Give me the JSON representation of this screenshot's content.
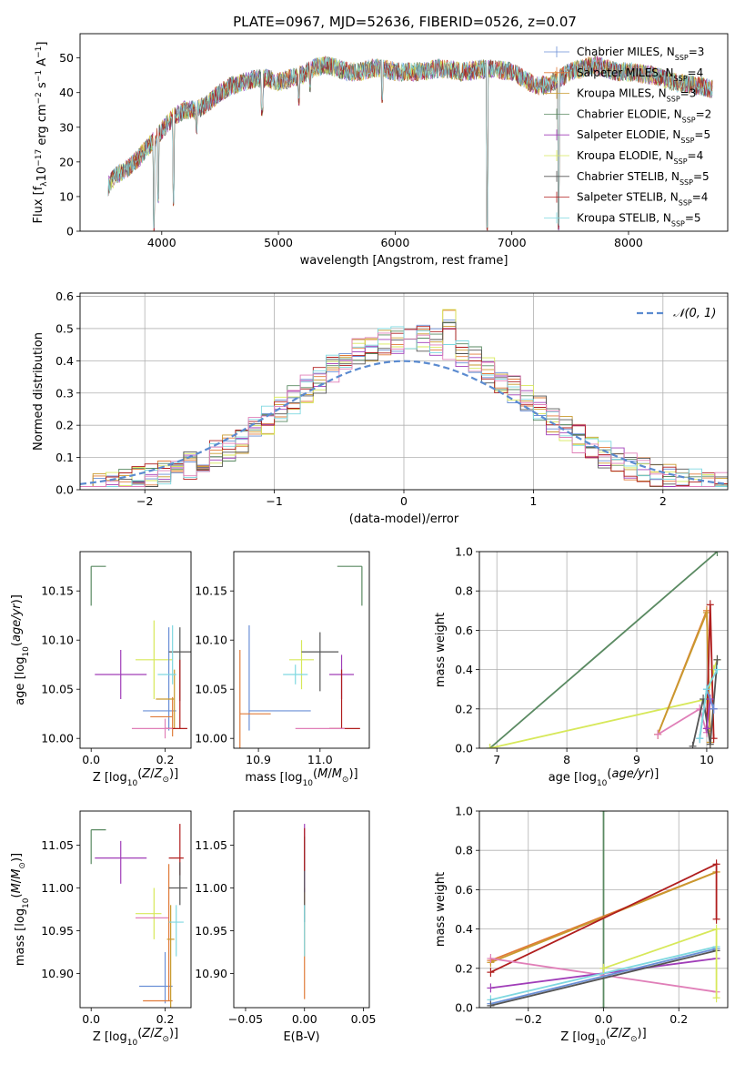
{
  "figure_title": "PLATE=0967, MJD=52636, FIBERID=0526, z=0.07",
  "colors": {
    "Chabrier MILES": "#6a8fd6",
    "Salpeter MILES": "#e07b39",
    "Kroupa MILES": "#c99a2e",
    "Chabrier ELODIE": "#5a8a62",
    "Salpeter ELODIE": "#a03db8",
    "Kroupa ELODIE": "#d7e85a",
    "Chabrier STELIB": "#555555",
    "Salpeter STELIB": "#b01e1e",
    "Kroupa STELIB": "#7fd8e0",
    "pink": "#e07fb8",
    "normal_curve": "#5b8bd0",
    "grid": "#b0b0b0"
  },
  "chart_data": [
    {
      "id": "spectrum",
      "type": "line",
      "xlabel": "wavelength [Angstrom, rest frame]",
      "ylabel": "Flux [f_λ10^−17 erg cm^−2 s^−1 A^−1]",
      "xlim": [
        3300,
        8850
      ],
      "ylim": [
        0,
        57
      ],
      "xticks": [
        4000,
        5000,
        6000,
        7000,
        8000
      ],
      "yticks": [
        0,
        10,
        20,
        30,
        40,
        50
      ],
      "grid": false,
      "legend_position": "top-right",
      "legend": [
        {
          "model": "Chabrier MILES",
          "n": "3"
        },
        {
          "model": "Salpeter MILES",
          "n": "4"
        },
        {
          "model": "Kroupa MILES",
          "n": "3"
        },
        {
          "model": "Chabrier ELODIE",
          "n": "2"
        },
        {
          "model": "Salpeter ELODIE",
          "n": "5"
        },
        {
          "model": "Kroupa ELODIE",
          "n": "4"
        },
        {
          "model": "Chabrier STELIB",
          "n": "5"
        },
        {
          "model": "Salpeter STELIB",
          "n": "4"
        },
        {
          "model": "Kroupa STELIB",
          "n": "5"
        }
      ],
      "continuum": [
        [
          3540,
          13
        ],
        [
          3600,
          16
        ],
        [
          3700,
          18
        ],
        [
          3800,
          21
        ],
        [
          3900,
          25
        ],
        [
          4000,
          29
        ],
        [
          4100,
          33
        ],
        [
          4200,
          35
        ],
        [
          4300,
          35
        ],
        [
          4400,
          37
        ],
        [
          4500,
          40
        ],
        [
          4600,
          42
        ],
        [
          4700,
          43
        ],
        [
          4800,
          44
        ],
        [
          4900,
          44
        ],
        [
          5000,
          43
        ],
        [
          5100,
          44
        ],
        [
          5200,
          45
        ],
        [
          5300,
          47
        ],
        [
          5400,
          48
        ],
        [
          5500,
          47
        ],
        [
          5600,
          46
        ],
        [
          5700,
          46
        ],
        [
          5800,
          47
        ],
        [
          5900,
          47
        ],
        [
          6000,
          46
        ],
        [
          6200,
          46
        ],
        [
          6400,
          47
        ],
        [
          6600,
          46
        ],
        [
          6800,
          47
        ],
        [
          7000,
          46
        ],
        [
          7100,
          44
        ],
        [
          7200,
          42
        ],
        [
          7300,
          42
        ],
        [
          7400,
          44
        ],
        [
          7500,
          46
        ],
        [
          7600,
          47
        ],
        [
          7700,
          48
        ],
        [
          7800,
          47
        ],
        [
          7900,
          46
        ],
        [
          8000,
          46
        ],
        [
          8200,
          45
        ],
        [
          8400,
          43
        ],
        [
          8600,
          42
        ],
        [
          8720,
          41
        ]
      ],
      "dips": [
        [
          3934,
          0
        ],
        [
          3969,
          8
        ],
        [
          4102,
          6
        ],
        [
          4300,
          28
        ],
        [
          4861,
          33
        ],
        [
          5175,
          36
        ],
        [
          5270,
          40
        ],
        [
          5890,
          37
        ],
        [
          6563,
          43
        ],
        [
          6790,
          0
        ],
        [
          7400,
          0
        ]
      ],
      "noise_amplitude": 4
    },
    {
      "id": "residuals",
      "type": "histogram",
      "xlabel": "(data-model)/error",
      "ylabel": "Normed distribution",
      "xlim": [
        -2.5,
        2.5
      ],
      "ylim": [
        0,
        0.61
      ],
      "xticks": [
        -2,
        -1,
        0,
        1,
        2
      ],
      "yticks": [
        0.0,
        0.1,
        0.2,
        0.3,
        0.4,
        0.5,
        0.6
      ],
      "grid": true,
      "bin_width": 0.1,
      "legend_position": "top-right",
      "normal_curve": {
        "mean": 0,
        "sigma": 1,
        "style": "dashed"
      },
      "profile": {
        "mean": 0.05,
        "sigma": 0.88,
        "peak": 0.47
      },
      "series_peaks": [
        0.55,
        0.57,
        0.51,
        0.55,
        0.52,
        0.57,
        0.52,
        0.53,
        0.47
      ]
    },
    {
      "id": "age_vs_Z",
      "type": "errorbar",
      "xlabel": "Z [log10(Z/Z☉)]",
      "ylabel": "age  [log10(age/yr)]",
      "xlim": [
        -0.03,
        0.27
      ],
      "ylim": [
        9.99,
        10.19
      ],
      "xticks": [
        0.0,
        0.2
      ],
      "yticks": [
        10.0,
        10.05,
        10.1,
        10.15
      ],
      "points": [
        {
          "c": "Chabrier ELODIE",
          "x": 0.0,
          "y": 10.175,
          "xerr": [
            0,
            0.04
          ],
          "yerr": [
            0.04,
            0
          ]
        },
        {
          "c": "Salpeter ELODIE",
          "x": 0.08,
          "y": 10.065,
          "xerr": [
            0.07,
            0.07
          ],
          "yerr": [
            0.025,
            0.025
          ]
        },
        {
          "c": "Kroupa ELODIE",
          "x": 0.17,
          "y": 10.08,
          "xerr": [
            0.05,
            0.05
          ],
          "yerr": [
            0.04,
            0.04
          ]
        },
        {
          "c": "Chabrier MILES",
          "x": 0.21,
          "y": 10.028,
          "xerr": [
            0.07,
            0.02
          ],
          "yerr": [
            0.02,
            0.085
          ]
        },
        {
          "c": "Salpeter MILES",
          "x": 0.22,
          "y": 10.022,
          "xerr": [
            0.06,
            0
          ],
          "yerr": [
            0.02,
            0.02
          ]
        },
        {
          "c": "Kroupa MILES",
          "x": 0.225,
          "y": 10.04,
          "xerr": [
            0.05,
            0
          ],
          "yerr": [
            0.03,
            0.03
          ]
        },
        {
          "c": "Chabrier STELIB",
          "x": 0.24,
          "y": 10.088,
          "xerr": [
            0.03,
            0.03
          ],
          "yerr": [
            0.05,
            0.025
          ]
        },
        {
          "c": "Salpeter STELIB",
          "x": 0.24,
          "y": 10.01,
          "xerr": [
            0.04,
            0.02
          ],
          "yerr": [
            0,
            0.07
          ]
        },
        {
          "c": "Kroupa STELIB",
          "x": 0.22,
          "y": 10.065,
          "xerr": [
            0.04,
            0.01
          ],
          "yerr": [
            0.01,
            0.05
          ]
        },
        {
          "c": "pink",
          "x": 0.2,
          "y": 10.01,
          "xerr": [
            0.09,
            0.02
          ],
          "yerr": [
            0.01,
            0.01
          ]
        }
      ]
    },
    {
      "id": "age_vs_mass",
      "type": "errorbar",
      "xlabel": "mass [log10(M/M☉)]",
      "ylabel": "",
      "xlim": [
        10.86,
        11.08
      ],
      "ylim": [
        9.99,
        10.19
      ],
      "xticks": [
        10.9,
        11.0
      ],
      "yticks": [
        10.0,
        10.05,
        10.1,
        10.15
      ],
      "points": [
        {
          "c": "Chabrier ELODIE",
          "x": 11.068,
          "y": 10.175,
          "xerr": [
            0.04,
            0
          ],
          "yerr": [
            0.04,
            0
          ]
        },
        {
          "c": "Chabrier MILES",
          "x": 10.885,
          "y": 10.028,
          "xerr": [
            0,
            0.1
          ],
          "yerr": [
            0.02,
            0.087
          ]
        },
        {
          "c": "Salpeter MILES",
          "x": 10.87,
          "y": 10.025,
          "xerr": [
            0,
            0.05
          ],
          "yerr": [
            0.035,
            0.065
          ]
        },
        {
          "c": "Kroupa ELODIE",
          "x": 10.97,
          "y": 10.08,
          "xerr": [
            0.02,
            0.02
          ],
          "yerr": [
            0.03,
            0.02
          ]
        },
        {
          "c": "Kroupa STELIB",
          "x": 10.96,
          "y": 10.065,
          "xerr": [
            0.02,
            0.02
          ],
          "yerr": [
            0.01,
            0.01
          ]
        },
        {
          "c": "Chabrier STELIB",
          "x": 11.0,
          "y": 10.088,
          "xerr": [
            0.03,
            0.03
          ],
          "yerr": [
            0.04,
            0.02
          ]
        },
        {
          "c": "Salpeter ELODIE",
          "x": 11.035,
          "y": 10.065,
          "xerr": [
            0.02,
            0.02
          ],
          "yerr": [
            0.025,
            0.02
          ]
        },
        {
          "c": "Salpeter STELIB",
          "x": 11.035,
          "y": 10.01,
          "xerr": [
            0.02,
            0.03
          ],
          "yerr": [
            0,
            0.06
          ]
        },
        {
          "c": "pink",
          "x": 11.0,
          "y": 10.01,
          "xerr": [
            0.04,
            0.04
          ],
          "yerr": [
            0,
            0
          ]
        }
      ]
    },
    {
      "id": "weight_vs_age",
      "type": "line",
      "xlabel": "age  [log10(age/yr)]",
      "ylabel": "mass weight",
      "xlim": [
        6.75,
        10.3
      ],
      "ylim": [
        0,
        1.0
      ],
      "xticks": [
        7,
        8,
        9,
        10
      ],
      "yticks": [
        0.0,
        0.2,
        0.4,
        0.6,
        0.8,
        1.0
      ],
      "grid": true,
      "series": [
        {
          "c": "Chabrier ELODIE",
          "x": [
            6.9,
            10.15
          ],
          "y": [
            0,
            1.0
          ]
        },
        {
          "c": "Kroupa ELODIE",
          "x": [
            6.9,
            10.0,
            10.1,
            10.15
          ],
          "y": [
            0,
            0.25,
            0.4,
            0.45
          ]
        },
        {
          "c": "Salpeter MILES",
          "x": [
            9.3,
            10.0,
            10.05
          ],
          "y": [
            0.07,
            0.7,
            0.03
          ]
        },
        {
          "c": "Kroupa MILES",
          "x": [
            9.3,
            10.0,
            10.05
          ],
          "y": [
            0.07,
            0.69,
            0.03
          ]
        },
        {
          "c": "Salpeter STELIB",
          "x": [
            10.0,
            10.05,
            10.1
          ],
          "y": [
            0.1,
            0.73,
            0.05
          ]
        },
        {
          "c": "pink",
          "x": [
            9.3,
            9.9,
            10.0
          ],
          "y": [
            0.07,
            0.2,
            0.08
          ]
        },
        {
          "c": "Chabrier STELIB",
          "x": [
            9.8,
            9.95,
            10.05,
            10.15
          ],
          "y": [
            0.01,
            0.25,
            0.02,
            0.45
          ]
        },
        {
          "c": "Salpeter ELODIE",
          "x": [
            10.0,
            10.05,
            10.1
          ],
          "y": [
            0.1,
            0.25,
            0.2
          ]
        },
        {
          "c": "Chabrier MILES",
          "x": [
            9.9,
            10.0,
            10.1
          ],
          "y": [
            0.05,
            0.3,
            0.2
          ]
        },
        {
          "c": "Kroupa STELIB",
          "x": [
            9.9,
            10.0,
            10.15
          ],
          "y": [
            0.05,
            0.3,
            0.4
          ]
        }
      ]
    },
    {
      "id": "mass_vs_Z",
      "type": "errorbar",
      "xlabel": "Z [log10(Z/Z☉)]",
      "ylabel": "mass [log10(M/M☉)]",
      "xlim": [
        -0.03,
        0.27
      ],
      "ylim": [
        10.86,
        11.09
      ],
      "xticks": [
        0.0,
        0.2
      ],
      "yticks": [
        10.9,
        10.95,
        11.0,
        11.05
      ],
      "points": [
        {
          "c": "Chabrier ELODIE",
          "x": 0.0,
          "y": 11.068,
          "xerr": [
            0,
            0.04
          ],
          "yerr": [
            0.04,
            0
          ]
        },
        {
          "c": "Salpeter ELODIE",
          "x": 0.08,
          "y": 11.035,
          "xerr": [
            0.07,
            0.07
          ],
          "yerr": [
            0.03,
            0.02
          ]
        },
        {
          "c": "Kroupa ELODIE",
          "x": 0.17,
          "y": 10.97,
          "xerr": [
            0.05,
            0.02
          ],
          "yerr": [
            0.03,
            0.03
          ]
        },
        {
          "c": "pink",
          "x": 0.17,
          "y": 10.965,
          "xerr": [
            0.05,
            0.04
          ],
          "yerr": [
            0,
            0
          ]
        },
        {
          "c": "Chabrier MILES",
          "x": 0.2,
          "y": 10.885,
          "xerr": [
            0.07,
            0.02
          ],
          "yerr": [
            0.02,
            0.04
          ]
        },
        {
          "c": "Salpeter MILES",
          "x": 0.21,
          "y": 10.868,
          "xerr": [
            0.07,
            0.01
          ],
          "yerr": [
            0,
            0.16
          ]
        },
        {
          "c": "Kroupa MILES",
          "x": 0.215,
          "y": 10.94,
          "xerr": [
            0.01,
            0.01
          ],
          "yerr": [
            0.08,
            0.04
          ]
        },
        {
          "c": "Salpeter STELIB",
          "x": 0.24,
          "y": 11.035,
          "xerr": [
            0.03,
            0.01
          ],
          "yerr": [
            0.02,
            0.04
          ]
        },
        {
          "c": "Chabrier STELIB",
          "x": 0.24,
          "y": 11.0,
          "xerr": [
            0.03,
            0.02
          ],
          "yerr": [
            0.02,
            0.03
          ]
        },
        {
          "c": "Kroupa STELIB",
          "x": 0.23,
          "y": 10.96,
          "xerr": [
            0.02,
            0.02
          ],
          "yerr": [
            0.04,
            0.02
          ]
        }
      ]
    },
    {
      "id": "mass_vs_ebv",
      "type": "errorbar",
      "xlabel": "E(B-V)",
      "ylabel": "",
      "xlim": [
        -0.06,
        0.055
      ],
      "ylim": [
        10.86,
        11.09
      ],
      "xticks": [
        -0.05,
        0.0,
        0.05
      ],
      "yticks": [
        10.9,
        10.95,
        11.0,
        11.05
      ],
      "points": [
        {
          "c": "Salpeter MILES",
          "x": 0.0,
          "y": 10.92,
          "xerr": [
            0,
            0
          ],
          "yerr": [
            0.05,
            0.08
          ]
        },
        {
          "c": "Salpeter ELODIE",
          "x": 0.0,
          "y": 11.035,
          "xerr": [
            0,
            0
          ],
          "yerr": [
            0.04,
            0.04
          ]
        },
        {
          "c": "Chabrier STELIB",
          "x": 0.0,
          "y": 11.0,
          "xerr": [
            0,
            0
          ],
          "yerr": [
            0.04,
            0.06
          ]
        },
        {
          "c": "Kroupa STELIB",
          "x": 0.0,
          "y": 10.96,
          "xerr": [
            0,
            0
          ],
          "yerr": [
            0.04,
            0.02
          ]
        },
        {
          "c": "Salpeter STELIB",
          "x": 0.0,
          "y": 11.04,
          "xerr": [
            0,
            0
          ],
          "yerr": [
            0.02,
            0.03
          ]
        }
      ]
    },
    {
      "id": "weight_vs_Z",
      "type": "line",
      "xlabel": "Z [log10(Z/Z☉)]",
      "ylabel": "mass weight",
      "xlim": [
        -0.33,
        0.33
      ],
      "ylim": [
        0,
        1.0
      ],
      "xticks": [
        -0.2,
        0.0,
        0.2
      ],
      "yticks": [
        0.0,
        0.2,
        0.4,
        0.6,
        0.8,
        1.0
      ],
      "grid": true,
      "series": [
        {
          "c": "Chabrier ELODIE",
          "x": [
            0.0,
            0.0
          ],
          "y": [
            0.0,
            1.0
          ]
        },
        {
          "c": "Salpeter MILES",
          "x": [
            -0.3,
            0.3
          ],
          "y": [
            0.24,
            0.69
          ]
        },
        {
          "c": "Kroupa MILES",
          "x": [
            -0.3,
            0.3
          ],
          "y": [
            0.23,
            0.69
          ]
        },
        {
          "c": "Salpeter STELIB",
          "x": [
            -0.3,
            0.3,
            0.3
          ],
          "y": [
            0.18,
            0.73,
            0.45
          ]
        },
        {
          "c": "pink",
          "x": [
            -0.3,
            0.3
          ],
          "y": [
            0.25,
            0.08
          ]
        },
        {
          "c": "Salpeter ELODIE",
          "x": [
            -0.3,
            0.3
          ],
          "y": [
            0.1,
            0.25
          ]
        },
        {
          "c": "Kroupa STELIB",
          "x": [
            -0.3,
            0.3
          ],
          "y": [
            0.04,
            0.31
          ]
        },
        {
          "c": "Chabrier MILES",
          "x": [
            -0.3,
            0.3
          ],
          "y": [
            0.02,
            0.3
          ]
        },
        {
          "c": "Chabrier STELIB",
          "x": [
            -0.3,
            0.3
          ],
          "y": [
            0.01,
            0.29
          ]
        },
        {
          "c": "Kroupa ELODIE",
          "x": [
            0.0,
            0.3,
            0.3
          ],
          "y": [
            0.2,
            0.4,
            0.05
          ]
        }
      ]
    }
  ]
}
